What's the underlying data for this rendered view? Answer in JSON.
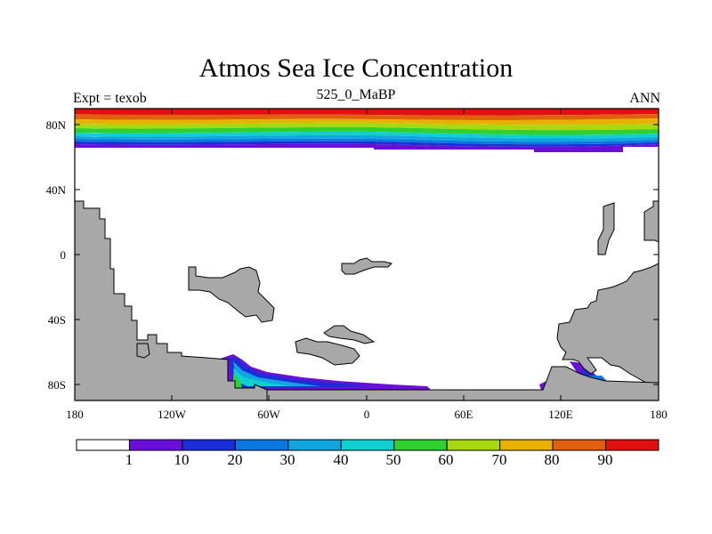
{
  "title": "Atmos Sea Ice Concentration",
  "subtitle_left": "Expt = texob",
  "subtitle_center": "525_0_MaBP",
  "subtitle_right": "ANN",
  "y_ticks": [
    "80N",
    "40N",
    "0",
    "40S",
    "80S"
  ],
  "x_ticks": [
    "180",
    "120W",
    "60W",
    "0",
    "60E",
    "120E",
    "180"
  ],
  "colorbar": {
    "labels": [
      "1",
      "10",
      "20",
      "30",
      "40",
      "50",
      "60",
      "70",
      "80",
      "90"
    ],
    "colors": [
      "#ffffff",
      "#6a0fd8",
      "#1a2fd8",
      "#0a78e0",
      "#10a6e0",
      "#10cfd0",
      "#30d030",
      "#a8d810",
      "#e8b000",
      "#e06010",
      "#e01010"
    ]
  },
  "map": {
    "land_color": "#a8a8a8",
    "ocean_color": "#ffffff"
  }
}
